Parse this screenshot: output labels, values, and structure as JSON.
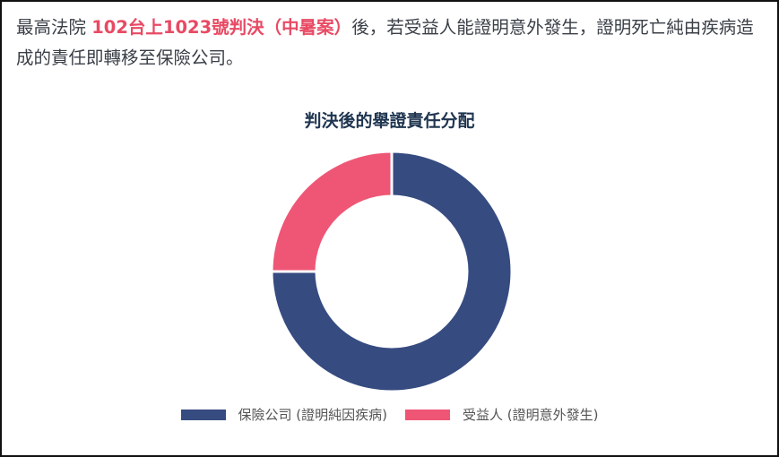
{
  "text": {
    "prefix": "最高法院 ",
    "highlight": "102台上1023號判決（中暑案）",
    "suffix": "後，若受益人能證明意外發生，證明死亡純由疾病造成的責任即轉移至保險公司。"
  },
  "colors": {
    "insurer": "#364b80",
    "beneficiary": "#ef5675",
    "highlight": "#e84a64"
  },
  "chart_data": {
    "type": "pie",
    "variant": "donut",
    "title": "判決後的舉證責任分配",
    "categories": [
      "保險公司 (證明純因疾病)",
      "受益人 (證明意外發生)"
    ],
    "values": [
      75,
      25
    ],
    "legend": "bottom"
  }
}
